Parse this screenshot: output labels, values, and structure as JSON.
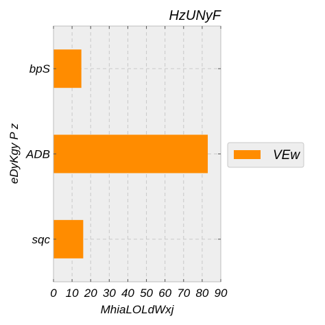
{
  "chart_data": {
    "type": "bar",
    "orientation": "horizontal",
    "title": "HzUNyF",
    "xlabel": "MhiaLOLdWxj",
    "ylabel": "eDyKgy P z",
    "categories": [
      "bpS",
      "ADB",
      "sqc"
    ],
    "series": [
      {
        "name": "VEw",
        "values": [
          15,
          83,
          16
        ]
      }
    ],
    "xlim": [
      0,
      90
    ],
    "xticks": [
      0,
      10,
      20,
      30,
      40,
      50,
      60,
      70,
      80,
      90
    ],
    "grid": true,
    "legend_position": "right",
    "colors": {
      "bar": "#ff8c00",
      "plot_background": "#eeeeee",
      "grid": "#c8c8c8",
      "axis": "#bcbcbc",
      "text": "#000000"
    }
  }
}
